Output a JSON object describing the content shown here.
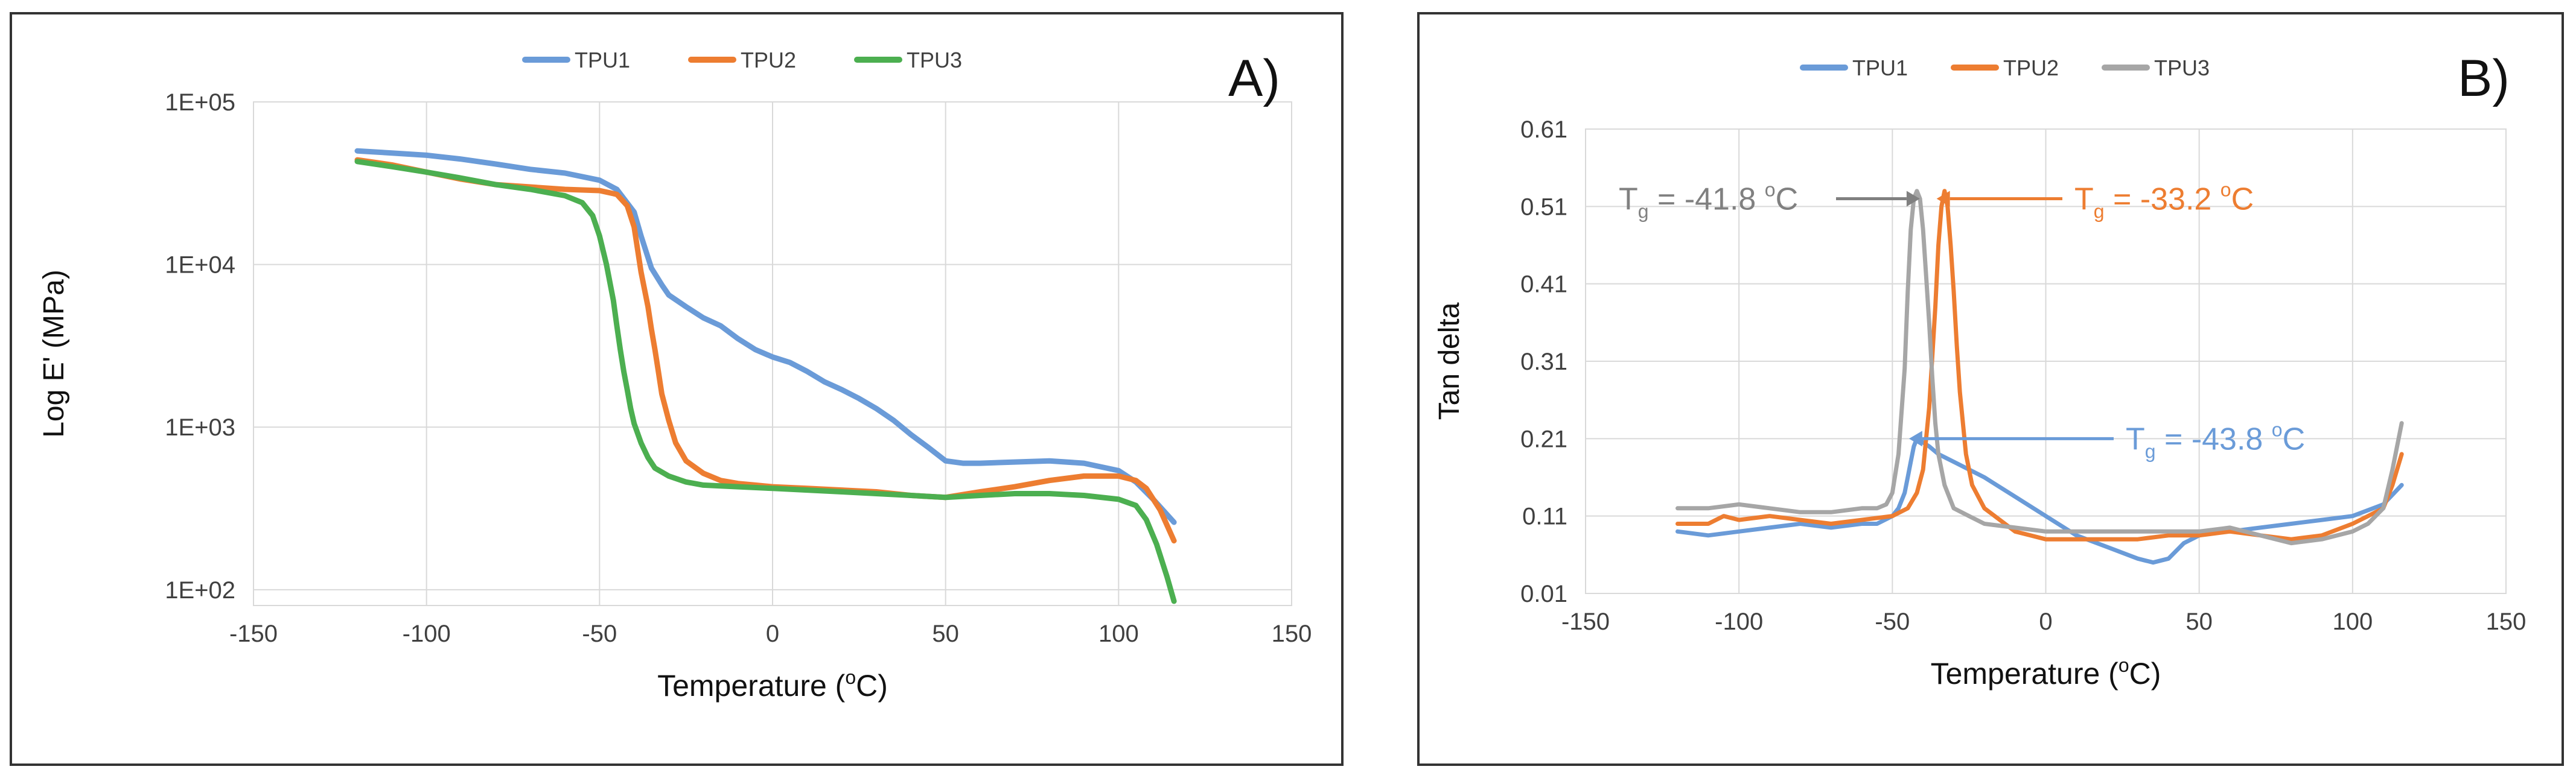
{
  "chart_data": [
    {
      "type": "line",
      "panel_label": "A)",
      "xlabel": "Temperature (",
      "xlabel_sup": "o",
      "xlabel_tail": "C)",
      "ylabel": "Log  E' (MPa)",
      "yscale": "log",
      "xlim": [
        -150,
        150
      ],
      "ylim": [
        80,
        100000
      ],
      "xticks": [
        -150,
        -100,
        -50,
        0,
        50,
        100,
        150
      ],
      "xtick_labels": [
        "-150",
        "-100",
        "-50",
        "0",
        "50",
        "100",
        "150"
      ],
      "yticks": [
        100,
        1000,
        10000,
        100000
      ],
      "ytick_labels": [
        "1E+02",
        "1E+03",
        "1E+04",
        "1E+05"
      ],
      "grid": true,
      "legend": "top-center",
      "series": [
        {
          "name": "TPU1",
          "color": "#6A9BD8",
          "x": [
            -120,
            -110,
            -100,
            -90,
            -80,
            -70,
            -60,
            -50,
            -45,
            -40,
            -38,
            -35,
            -32,
            -30,
            -25,
            -20,
            -15,
            -10,
            -5,
            0,
            5,
            10,
            15,
            20,
            25,
            30,
            35,
            40,
            45,
            50,
            55,
            60,
            70,
            80,
            90,
            100,
            105,
            110,
            116
          ],
          "y": [
            50000,
            48500,
            47000,
            44500,
            41500,
            38500,
            36500,
            33000,
            29000,
            21000,
            15000,
            9500,
            7500,
            6500,
            5500,
            4700,
            4200,
            3500,
            3000,
            2700,
            2500,
            2200,
            1900,
            1700,
            1500,
            1300,
            1100,
            900,
            750,
            620,
            600,
            600,
            610,
            620,
            600,
            540,
            460,
            360,
            260
          ]
        },
        {
          "name": "TPU2",
          "color": "#ED7D31",
          "x": [
            -120,
            -110,
            -100,
            -90,
            -80,
            -70,
            -60,
            -50,
            -45,
            -42,
            -40,
            -38,
            -36,
            -35,
            -34,
            -33,
            -32,
            -30,
            -28,
            -25,
            -20,
            -15,
            -10,
            -5,
            0,
            10,
            20,
            30,
            40,
            50,
            60,
            70,
            80,
            90,
            100,
            105,
            108,
            112,
            116
          ],
          "y": [
            44000,
            41000,
            37000,
            33500,
            31000,
            30000,
            29000,
            28500,
            27000,
            23000,
            17000,
            9000,
            5500,
            4000,
            3000,
            2200,
            1600,
            1100,
            800,
            620,
            520,
            470,
            450,
            440,
            430,
            420,
            410,
            400,
            380,
            370,
            400,
            430,
            470,
            500,
            500,
            470,
            420,
            310,
            200
          ]
        },
        {
          "name": "TPU3",
          "color": "#4CAF50",
          "x": [
            -120,
            -110,
            -100,
            -90,
            -80,
            -70,
            -60,
            -55,
            -52,
            -50,
            -48,
            -46,
            -45,
            -44,
            -43,
            -42,
            -41,
            -40,
            -38,
            -36,
            -34,
            -30,
            -25,
            -20,
            -10,
            0,
            10,
            20,
            30,
            40,
            50,
            60,
            70,
            80,
            90,
            100,
            105,
            108,
            111,
            114,
            116
          ],
          "y": [
            43000,
            40000,
            37000,
            34000,
            31000,
            29000,
            26500,
            24000,
            20000,
            15000,
            10000,
            6000,
            4200,
            3000,
            2200,
            1700,
            1300,
            1050,
            800,
            650,
            560,
            500,
            460,
            440,
            430,
            420,
            410,
            400,
            390,
            380,
            370,
            380,
            390,
            390,
            380,
            360,
            330,
            270,
            190,
            120,
            85
          ]
        }
      ]
    },
    {
      "type": "line",
      "panel_label": "B)",
      "xlabel": "Temperature (",
      "xlabel_sup": "o",
      "xlabel_tail": "C)",
      "ylabel": "Tan delta",
      "xlim": [
        -150,
        150
      ],
      "ylim": [
        0.01,
        0.61
      ],
      "xticks": [
        -150,
        -100,
        -50,
        0,
        50,
        100,
        150
      ],
      "xtick_labels": [
        "-150",
        "-100",
        "-50",
        "0",
        "50",
        "100",
        "150"
      ],
      "yticks": [
        0.01,
        0.11,
        0.21,
        0.31,
        0.41,
        0.51,
        0.61
      ],
      "ytick_labels": [
        "0.01",
        "0.11",
        "0.21",
        "0.31",
        "0.41",
        "0.51",
        "0.61"
      ],
      "grid": true,
      "legend": "top-center",
      "series": [
        {
          "name": "TPU1",
          "color": "#6A9BD8",
          "x": [
            -120,
            -110,
            -100,
            -90,
            -80,
            -70,
            -60,
            -55,
            -50,
            -48,
            -46,
            -45,
            -44,
            -43,
            -42,
            -40,
            -38,
            -35,
            -30,
            -20,
            -10,
            0,
            10,
            20,
            30,
            35,
            40,
            45,
            50,
            55,
            60,
            70,
            80,
            90,
            100,
            110,
            116
          ],
          "y": [
            0.09,
            0.085,
            0.09,
            0.095,
            0.1,
            0.095,
            0.1,
            0.1,
            0.11,
            0.12,
            0.14,
            0.16,
            0.18,
            0.2,
            0.21,
            0.205,
            0.2,
            0.19,
            0.18,
            0.16,
            0.135,
            0.11,
            0.085,
            0.07,
            0.055,
            0.05,
            0.055,
            0.075,
            0.085,
            0.09,
            0.09,
            0.095,
            0.1,
            0.105,
            0.11,
            0.125,
            0.15
          ]
        },
        {
          "name": "TPU2",
          "color": "#ED7D31",
          "x": [
            -120,
            -110,
            -105,
            -100,
            -90,
            -80,
            -70,
            -60,
            -50,
            -45,
            -42,
            -40,
            -38,
            -36,
            -35,
            -34,
            -33,
            -32,
            -31,
            -30,
            -29,
            -28,
            -26,
            -24,
            -20,
            -10,
            0,
            10,
            20,
            30,
            40,
            50,
            60,
            70,
            80,
            90,
            100,
            105,
            110,
            113,
            116
          ],
          "y": [
            0.1,
            0.1,
            0.11,
            0.105,
            0.11,
            0.105,
            0.1,
            0.105,
            0.11,
            0.12,
            0.14,
            0.17,
            0.25,
            0.38,
            0.46,
            0.51,
            0.53,
            0.51,
            0.46,
            0.4,
            0.33,
            0.27,
            0.19,
            0.15,
            0.12,
            0.09,
            0.08,
            0.08,
            0.08,
            0.08,
            0.085,
            0.085,
            0.09,
            0.085,
            0.08,
            0.085,
            0.1,
            0.11,
            0.12,
            0.15,
            0.19
          ]
        },
        {
          "name": "TPU3",
          "color": "#A6A6A6",
          "x": [
            -120,
            -110,
            -100,
            -90,
            -80,
            -70,
            -60,
            -55,
            -52,
            -50,
            -48,
            -46,
            -45,
            -44,
            -43,
            -42,
            -41,
            -40,
            -39,
            -38,
            -37,
            -36,
            -35,
            -33,
            -30,
            -25,
            -20,
            -10,
            0,
            10,
            20,
            30,
            40,
            50,
            60,
            70,
            80,
            90,
            100,
            105,
            110,
            113,
            116
          ],
          "y": [
            0.12,
            0.12,
            0.125,
            0.12,
            0.115,
            0.115,
            0.12,
            0.12,
            0.125,
            0.14,
            0.19,
            0.3,
            0.4,
            0.48,
            0.52,
            0.53,
            0.52,
            0.48,
            0.42,
            0.36,
            0.29,
            0.23,
            0.19,
            0.15,
            0.12,
            0.11,
            0.1,
            0.095,
            0.09,
            0.09,
            0.09,
            0.09,
            0.09,
            0.09,
            0.095,
            0.085,
            0.075,
            0.08,
            0.09,
            0.1,
            0.12,
            0.17,
            0.23
          ]
        }
      ],
      "annotations": [
        {
          "prefix": "T",
          "sub": "g",
          "mid": " = -41.8 ",
          "sup": "o",
          "tail": "C",
          "color": "#808080",
          "point": [
            -43,
            0.52
          ]
        },
        {
          "prefix": "T",
          "sub": "g",
          "mid": " = -33.2 ",
          "sup": "o",
          "tail": "C",
          "color": "#ED7D31",
          "point": [
            -34,
            0.52
          ]
        },
        {
          "prefix": "T",
          "sub": "g",
          "mid": " = -43.8 ",
          "sup": "o",
          "tail": "C",
          "color": "#6A9BD8",
          "point": [
            -43,
            0.21
          ]
        }
      ]
    }
  ]
}
